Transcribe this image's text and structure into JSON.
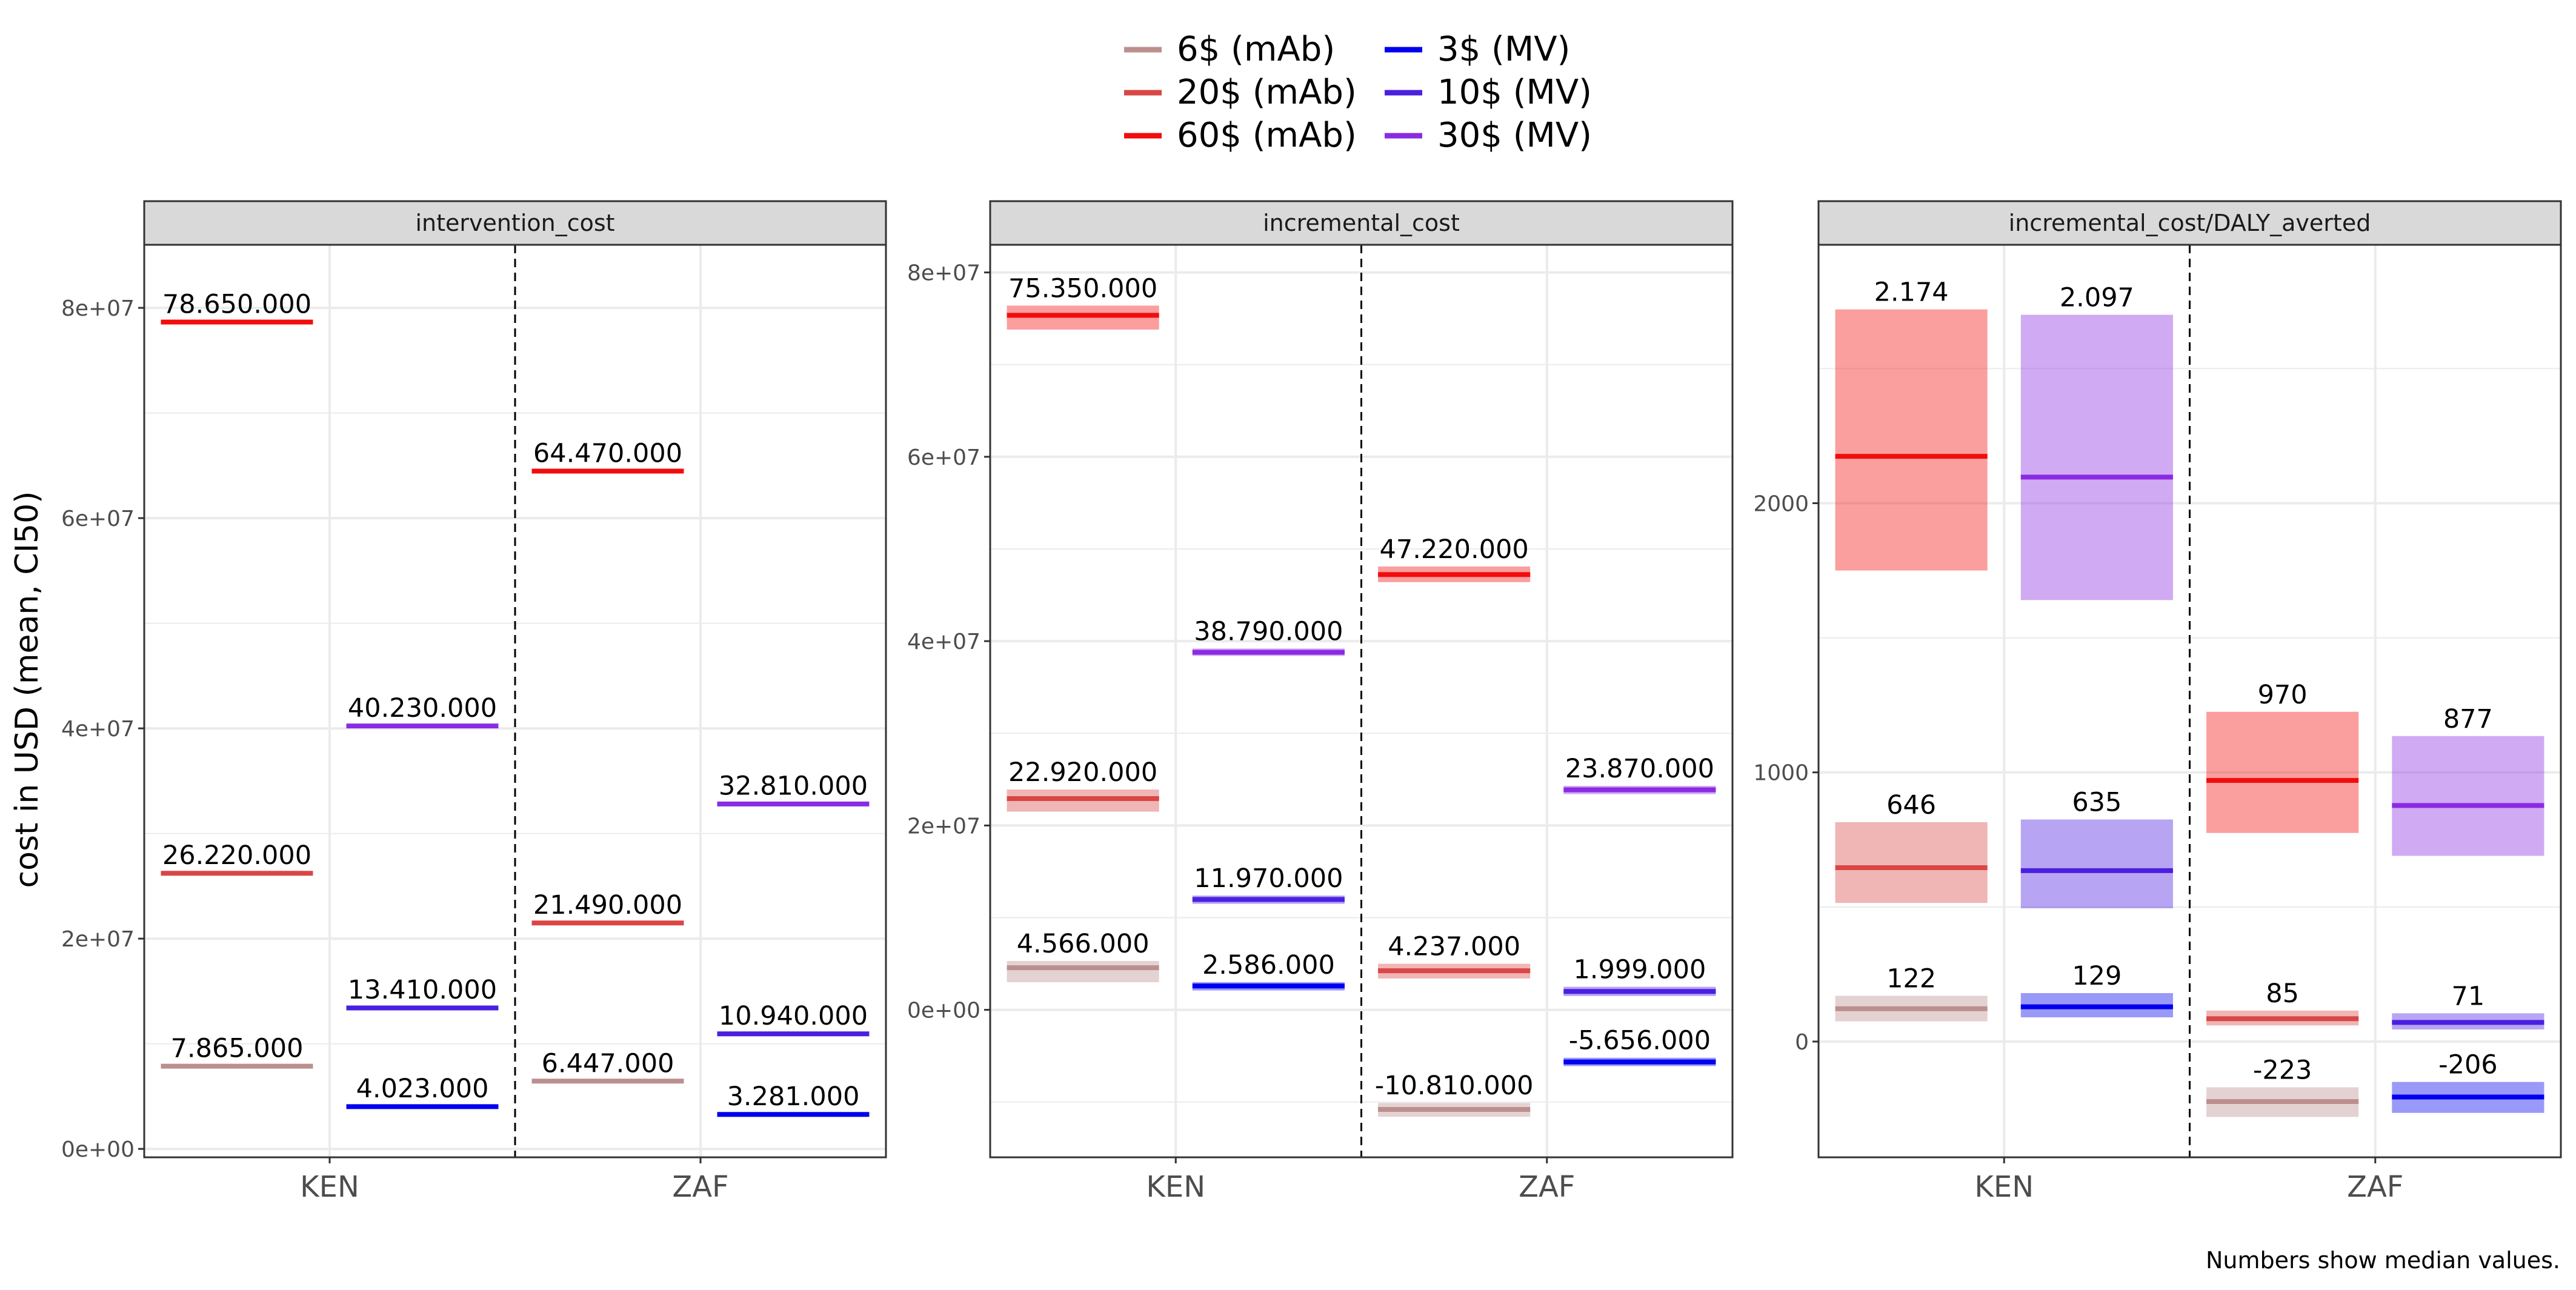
{
  "legend": {
    "items": [
      {
        "label": "6$ (mAb)",
        "color": "#BC8F8F"
      },
      {
        "label": "20$ (mAb)",
        "color": "#D94646"
      },
      {
        "label": "60$ (mAb)",
        "color": "#F20D0D"
      },
      {
        "label": "3$ (MV)",
        "color": "#0000EE"
      },
      {
        "label": "10$ (MV)",
        "color": "#4B1FE0"
      },
      {
        "label": "30$ (MV)",
        "color": "#8A2BE2"
      }
    ]
  },
  "y_axis_title": "cost in USD (mean, CI50)",
  "caption": "Numbers show median values.",
  "chart_data": [
    {
      "type": "bar",
      "panel_title": "intervention_cost",
      "categories": [
        "KEN",
        "ZAF"
      ],
      "ylim": [
        -800000,
        86000000
      ],
      "yticks": [
        0,
        20000000,
        40000000,
        60000000,
        80000000
      ],
      "ytick_labels": [
        "0e+00",
        "2e+07",
        "4e+07",
        "6e+07",
        "8e+07"
      ],
      "series": [
        {
          "group": "mAb",
          "color": "#BC8F8F",
          "points": [
            {
              "x": "KEN",
              "mean": 7865000,
              "lo": 7800000,
              "hi": 7930000,
              "label": "7.865.000"
            },
            {
              "x": "ZAF",
              "mean": 6447000,
              "lo": 6400000,
              "hi": 6500000,
              "label": "6.447.000"
            }
          ]
        },
        {
          "group": "mAb",
          "color": "#D94646",
          "points": [
            {
              "x": "KEN",
              "mean": 26220000,
              "lo": 26150000,
              "hi": 26290000,
              "label": "26.220.000"
            },
            {
              "x": "ZAF",
              "mean": 21490000,
              "lo": 21420000,
              "hi": 21560000,
              "label": "21.490.000"
            }
          ]
        },
        {
          "group": "mAb",
          "color": "#F20D0D",
          "points": [
            {
              "x": "KEN",
              "mean": 78650000,
              "lo": 78580000,
              "hi": 78720000,
              "label": "78.650.000"
            },
            {
              "x": "ZAF",
              "mean": 64470000,
              "lo": 64400000,
              "hi": 64540000,
              "label": "64.470.000"
            }
          ]
        },
        {
          "group": "MV",
          "color": "#0000EE",
          "points": [
            {
              "x": "KEN",
              "mean": 4023000,
              "lo": 3960000,
              "hi": 4090000,
              "label": "4.023.000"
            },
            {
              "x": "ZAF",
              "mean": 3281000,
              "lo": 3220000,
              "hi": 3340000,
              "label": "3.281.000"
            }
          ]
        },
        {
          "group": "MV",
          "color": "#4B1FE0",
          "points": [
            {
              "x": "KEN",
              "mean": 13410000,
              "lo": 13340000,
              "hi": 13480000,
              "label": "13.410.000"
            },
            {
              "x": "ZAF",
              "mean": 10940000,
              "lo": 10870000,
              "hi": 11010000,
              "label": "10.940.000"
            }
          ]
        },
        {
          "group": "MV",
          "color": "#8A2BE2",
          "points": [
            {
              "x": "KEN",
              "mean": 40230000,
              "lo": 40160000,
              "hi": 40300000,
              "label": "40.230.000"
            },
            {
              "x": "ZAF",
              "mean": 32810000,
              "lo": 32740000,
              "hi": 32880000,
              "label": "32.810.000"
            }
          ]
        }
      ]
    },
    {
      "type": "bar",
      "panel_title": "incremental_cost",
      "categories": [
        "KEN",
        "ZAF"
      ],
      "ylim": [
        -16000000,
        83000000
      ],
      "yticks": [
        0,
        20000000,
        40000000,
        60000000,
        80000000
      ],
      "ytick_labels": [
        "0e+00",
        "2e+07",
        "4e+07",
        "6e+07",
        "8e+07"
      ],
      "series": [
        {
          "group": "mAb",
          "color": "#BC8F8F",
          "points": [
            {
              "x": "KEN",
              "mean": 4566000,
              "lo": 3000000,
              "hi": 5300000,
              "label": "4.566.000"
            },
            {
              "x": "ZAF",
              "mean": -10810000,
              "lo": -11600000,
              "hi": -10100000,
              "label": "-10.810.000"
            }
          ]
        },
        {
          "group": "mAb",
          "color": "#D94646",
          "points": [
            {
              "x": "KEN",
              "mean": 22920000,
              "lo": 21500000,
              "hi": 23900000,
              "label": "22.920.000"
            },
            {
              "x": "ZAF",
              "mean": 4237000,
              "lo": 3400000,
              "hi": 5000000,
              "label": "4.237.000"
            }
          ]
        },
        {
          "group": "mAb",
          "color": "#F20D0D",
          "points": [
            {
              "x": "KEN",
              "mean": 75350000,
              "lo": 73800000,
              "hi": 76400000,
              "label": "75.350.000"
            },
            {
              "x": "ZAF",
              "mean": 47220000,
              "lo": 46400000,
              "hi": 48100000,
              "label": "47.220.000"
            }
          ]
        },
        {
          "group": "MV",
          "color": "#0000EE",
          "points": [
            {
              "x": "KEN",
              "mean": 2586000,
              "lo": 2100000,
              "hi": 3000000,
              "label": "2.586.000"
            },
            {
              "x": "ZAF",
              "mean": -5656000,
              "lo": -6100000,
              "hi": -5200000,
              "label": "-5.656.000"
            }
          ]
        },
        {
          "group": "MV",
          "color": "#4B1FE0",
          "points": [
            {
              "x": "KEN",
              "mean": 11970000,
              "lo": 11500000,
              "hi": 12400000,
              "label": "11.970.000"
            },
            {
              "x": "ZAF",
              "mean": 1999000,
              "lo": 1500000,
              "hi": 2500000,
              "label": "1.999.000"
            }
          ]
        },
        {
          "group": "MV",
          "color": "#8A2BE2",
          "points": [
            {
              "x": "KEN",
              "mean": 38790000,
              "lo": 38400000,
              "hi": 39200000,
              "label": "38.790.000"
            },
            {
              "x": "ZAF",
              "mean": 23870000,
              "lo": 23400000,
              "hi": 24300000,
              "label": "23.870.000"
            }
          ]
        }
      ]
    },
    {
      "type": "bar",
      "panel_title": "incremental_cost/DALY_averted",
      "categories": [
        "KEN",
        "ZAF"
      ],
      "ylim": [
        -430,
        2960
      ],
      "yticks": [
        0,
        1000,
        2000
      ],
      "ytick_labels": [
        "0",
        "1000",
        "2000"
      ],
      "series": [
        {
          "group": "mAb",
          "color": "#BC8F8F",
          "points": [
            {
              "x": "KEN",
              "mean": 122,
              "lo": 75,
              "hi": 170,
              "label": "122"
            },
            {
              "x": "ZAF",
              "mean": -223,
              "lo": -280,
              "hi": -170,
              "label": "-223"
            }
          ]
        },
        {
          "group": "mAb",
          "color": "#D94646",
          "points": [
            {
              "x": "KEN",
              "mean": 646,
              "lo": 515,
              "hi": 815,
              "label": "646"
            },
            {
              "x": "ZAF",
              "mean": 85,
              "lo": 60,
              "hi": 115,
              "label": "85"
            }
          ]
        },
        {
          "group": "mAb",
          "color": "#F20D0D",
          "points": [
            {
              "x": "KEN",
              "mean": 2174,
              "lo": 1750,
              "hi": 2720,
              "label": "2.174"
            },
            {
              "x": "ZAF",
              "mean": 970,
              "lo": 775,
              "hi": 1225,
              "label": "970"
            }
          ]
        },
        {
          "group": "MV",
          "color": "#0000EE",
          "points": [
            {
              "x": "KEN",
              "mean": 129,
              "lo": 90,
              "hi": 180,
              "label": "129"
            },
            {
              "x": "ZAF",
              "mean": -206,
              "lo": -265,
              "hi": -150,
              "label": "-206"
            }
          ]
        },
        {
          "group": "MV",
          "color": "#4B1FE0",
          "points": [
            {
              "x": "KEN",
              "mean": 635,
              "lo": 495,
              "hi": 825,
              "label": "635"
            },
            {
              "x": "ZAF",
              "mean": 71,
              "lo": 45,
              "hi": 105,
              "label": "71"
            }
          ]
        },
        {
          "group": "MV",
          "color": "#8A2BE2",
          "points": [
            {
              "x": "KEN",
              "mean": 2097,
              "lo": 1640,
              "hi": 2700,
              "label": "2.097"
            },
            {
              "x": "ZAF",
              "mean": 877,
              "lo": 690,
              "hi": 1135,
              "label": "877"
            }
          ]
        }
      ]
    }
  ]
}
